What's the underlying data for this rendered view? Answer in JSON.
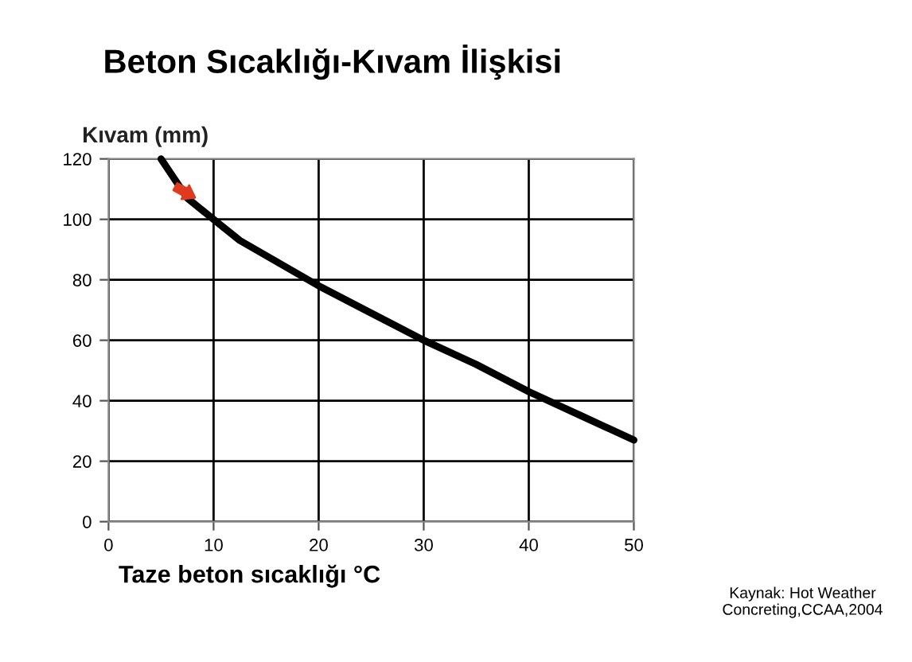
{
  "chart_data": {
    "type": "line",
    "title": "Beton Sıcaklığı-Kıvam İlişkisi",
    "ylabel": "Kıvam (mm)",
    "xlabel": "Taze beton sıcaklığı °C",
    "annotations": [
      "Kaynak: Hot Weather Concreting,CCAA,2004"
    ],
    "x": [
      5,
      7.5,
      10,
      12.5,
      15,
      20,
      25,
      30,
      35,
      40,
      45,
      50
    ],
    "series": [
      {
        "color": "#000000",
        "values": [
          120,
          107,
          100,
          93,
          88,
          78,
          69,
          60,
          52,
          43,
          35,
          27
        ]
      }
    ],
    "xlim": [
      0,
      50
    ],
    "xticks": [
      0,
      10,
      20,
      30,
      40,
      50
    ],
    "ylim": [
      0,
      120
    ],
    "yticks": [
      0,
      20,
      40,
      60,
      80,
      100,
      120
    ],
    "grid": true,
    "legend": false,
    "marker": "none",
    "line_style": "solid"
  }
}
